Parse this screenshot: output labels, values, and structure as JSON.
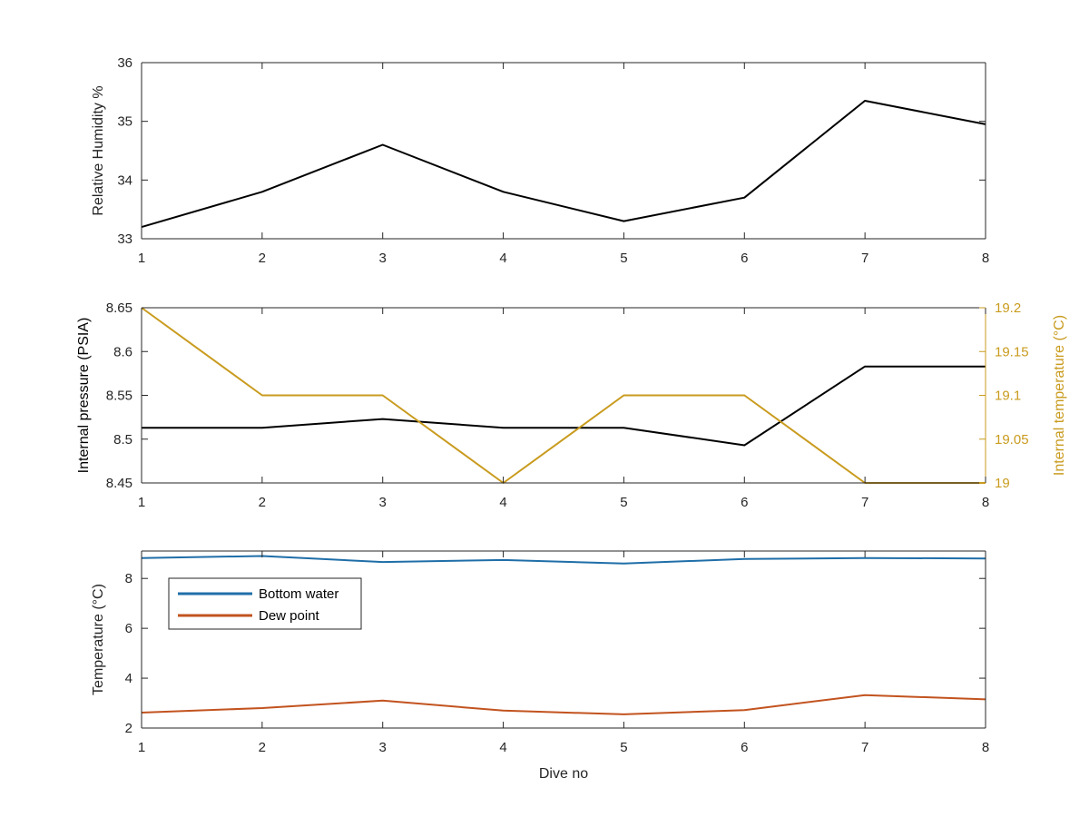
{
  "chart_data": [
    {
      "type": "line",
      "title": "",
      "xlabel": "",
      "ylabel": "Relative Humidity %",
      "xlim": [
        1,
        8
      ],
      "ylim": [
        33,
        36
      ],
      "x": [
        1,
        2,
        3,
        4,
        5,
        6,
        7,
        8
      ],
      "xticks": [
        "1",
        "2",
        "3",
        "4",
        "5",
        "6",
        "7",
        "8"
      ],
      "yticks": [
        "33",
        "34",
        "35",
        "36"
      ],
      "grid": false,
      "series": [
        {
          "color": "#000000",
          "values": [
            33.2,
            33.8,
            34.6,
            33.8,
            33.3,
            33.7,
            35.35,
            34.95
          ]
        }
      ]
    },
    {
      "type": "line",
      "title": "",
      "xlabel": "",
      "ylabel": "Internal pressure (PSIA)",
      "ylabel_right": "Internal temperature (°C)",
      "right_axis_color": "#C99B1E",
      "xlim": [
        1,
        8
      ],
      "ylim": [
        8.45,
        8.65
      ],
      "ylim_right": [
        19,
        19.2
      ],
      "x": [
        1,
        2,
        3,
        4,
        5,
        6,
        7,
        8
      ],
      "xticks": [
        "1",
        "2",
        "3",
        "4",
        "5",
        "6",
        "7",
        "8"
      ],
      "yticks": [
        "8.45",
        "8.5",
        "8.55",
        "8.6",
        "8.65"
      ],
      "yticks_right": [
        "19",
        "19.05",
        "19.1",
        "19.15",
        "19.2"
      ],
      "grid": false,
      "series": [
        {
          "color": "#000000",
          "axis": "left",
          "values": [
            8.513,
            8.513,
            8.523,
            8.513,
            8.513,
            8.493,
            8.583,
            8.583
          ]
        },
        {
          "color": "#C99B1E",
          "axis": "right",
          "values": [
            19.2,
            19.1,
            19.1,
            19.0,
            19.1,
            19.1,
            19.0,
            19.0
          ]
        }
      ]
    },
    {
      "type": "line",
      "title": "",
      "xlabel": "Dive no",
      "ylabel": "Temperature (°C)",
      "xlim": [
        1,
        8
      ],
      "ylim": [
        2,
        9.1
      ],
      "x": [
        1,
        2,
        3,
        4,
        5,
        6,
        7,
        8
      ],
      "xticks": [
        "1",
        "2",
        "3",
        "4",
        "5",
        "6",
        "7",
        "8"
      ],
      "yticks": [
        "2",
        "4",
        "6",
        "8"
      ],
      "grid": false,
      "legend": "top-left",
      "series": [
        {
          "name": "Bottom water",
          "color": "#1F6EA8",
          "values": [
            8.82,
            8.9,
            8.66,
            8.74,
            8.6,
            8.78,
            8.82,
            8.8
          ]
        },
        {
          "name": "Dew point",
          "color": "#C2531F",
          "values": [
            2.62,
            2.8,
            3.1,
            2.7,
            2.55,
            2.72,
            3.32,
            3.15
          ]
        }
      ]
    }
  ]
}
